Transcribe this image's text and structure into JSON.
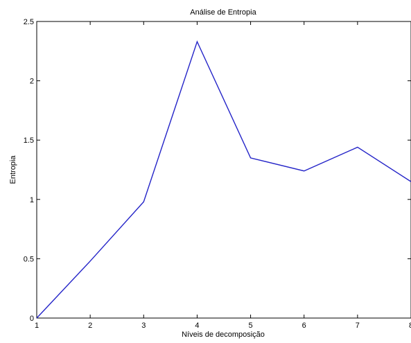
{
  "chart_data": {
    "type": "line",
    "title": "Análise de Entropia",
    "xlabel": "Níveis de decomposição",
    "ylabel": "Entropia",
    "x": [
      1,
      2,
      3,
      4,
      5,
      6,
      7,
      8
    ],
    "series": [
      {
        "values": [
          0,
          0.48,
          0.98,
          2.33,
          1.35,
          1.24,
          1.44,
          1.15
        ],
        "color": "#2424c8"
      }
    ],
    "xlim": [
      1,
      8
    ],
    "ylim": [
      0,
      2.5
    ],
    "xticks": [
      "1",
      "2",
      "3",
      "4",
      "5",
      "6",
      "7",
      "8"
    ],
    "yticks": [
      "0",
      "0.5",
      "1",
      "1.5",
      "2",
      "2.5"
    ],
    "grid": false,
    "legend": "none"
  }
}
